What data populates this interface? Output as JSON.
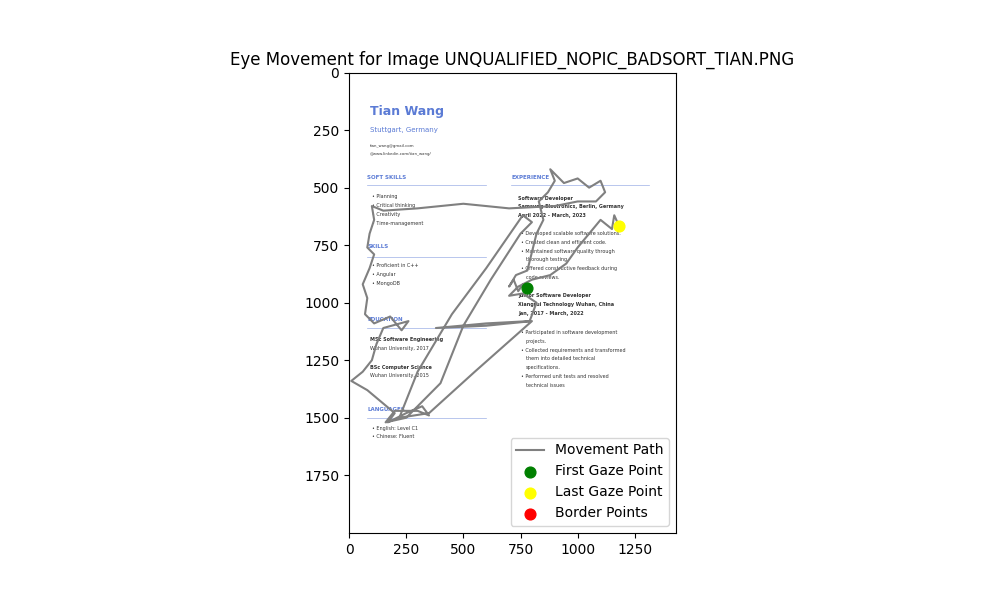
{
  "chart_data": {
    "type": "line",
    "title": "Eye Movement for Image UNQUALIFIED_NOPIC_BADSORT_TIAN.PNG",
    "xlim": [
      0,
      1430
    ],
    "ylim": [
      2000,
      0
    ],
    "xticks": [
      0,
      250,
      500,
      750,
      1000,
      1250
    ],
    "yticks": [
      0,
      250,
      500,
      750,
      1000,
      1250,
      1500,
      1750
    ],
    "legend": "lower right",
    "series": [
      {
        "name": "Movement Path",
        "type": "line",
        "color": "gray",
        "x": [
          780,
          760,
          740,
          720,
          700,
          730,
          780,
          800,
          820,
          850,
          830,
          870,
          900,
          880,
          940,
          1000,
          1050,
          1100,
          1120,
          1080,
          1000,
          900,
          700,
          500,
          300,
          150,
          100,
          110,
          90,
          80,
          110,
          90,
          60,
          80,
          70,
          110,
          180,
          230,
          260,
          150,
          120,
          100,
          60,
          10,
          80,
          140,
          200,
          170,
          250,
          320,
          350,
          300,
          200,
          160,
          250,
          400,
          500,
          620,
          750,
          800,
          760,
          600,
          450,
          300,
          220,
          350,
          550,
          800,
          600,
          380,
          600,
          790,
          820,
          760,
          700,
          740,
          800,
          880,
          950,
          1000,
          1050,
          1100,
          1150,
          1160,
          1180
        ],
        "values": [
          935,
          920,
          950,
          900,
          930,
          880,
          860,
          780,
          700,
          640,
          560,
          520,
          470,
          420,
          480,
          460,
          500,
          470,
          520,
          560,
          560,
          580,
          590,
          570,
          590,
          600,
          580,
          640,
          700,
          760,
          790,
          850,
          920,
          980,
          1050,
          1090,
          1060,
          1120,
          1080,
          1110,
          1180,
          1250,
          1300,
          1340,
          1380,
          1430,
          1480,
          1520,
          1480,
          1450,
          1490,
          1470,
          1470,
          1520,
          1500,
          1350,
          1100,
          900,
          700,
          650,
          620,
          850,
          1050,
          1300,
          1500,
          1480,
          1300,
          1080,
          1100,
          1110,
          1090,
          1080,
          1000,
          960,
          970,
          930,
          900,
          880,
          830,
          760,
          700,
          640,
          680,
          620,
          665
        ]
      },
      {
        "name": "First Gaze Point",
        "type": "scatter",
        "color": "green",
        "x": [
          780
        ],
        "values": [
          935
        ]
      },
      {
        "name": "Last Gaze Point",
        "type": "scatter",
        "color": "yellow",
        "x": [
          1180
        ],
        "values": [
          665
        ]
      },
      {
        "name": "Border Points",
        "type": "scatter",
        "color": "red",
        "x": [],
        "values": []
      }
    ],
    "annotations": [
      "Tian Wang",
      "Stuttgart, Germany",
      "tian_wang@gmail.com",
      "@www.linkedin.com/tian_wang/",
      "SOFT SKILLS",
      "• Planning",
      "• Critical thinking",
      "• Creativity",
      "• Time-management",
      "SKILLS",
      "• Proficient in C++",
      "• Angular",
      "• MongoDB",
      "EDUCATION",
      "MSc Software Engineering",
      "Wuhan University, 2017",
      "BSc Computer Science",
      "Wuhan University, 2015",
      "LANGUAGES",
      "• English: Level C1",
      "• Chinese: Fluent",
      "EXPERIENCE",
      "Software Developer",
      "Samsung Electronics, Berlin, Germany",
      "April 2022 - March, 2023",
      "• Developed scalable software solutions.",
      "• Created clean and efficient code.",
      "• Maintained software quality through",
      "thorough testing.",
      "• Offered constructive feedback during",
      "code reviews.",
      "Junior Software Developer",
      "Xiangrui Technology Wuhan, China",
      "Jan, 2017 - March, 2022",
      "• Participated in software development",
      "projects.",
      "• Collected requirements and transformed",
      "them into detailed technical",
      "specifications.",
      "• Performed unit tests and resolved",
      "technical issues"
    ]
  }
}
